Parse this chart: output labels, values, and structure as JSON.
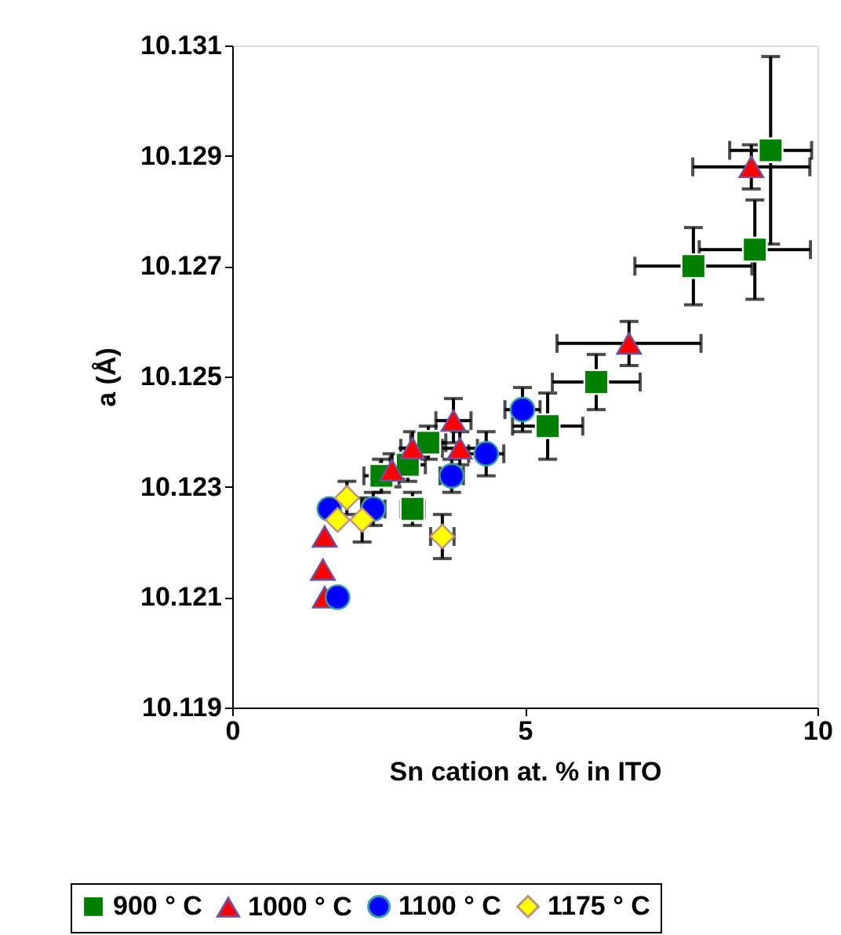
{
  "chart_data": {
    "type": "scatter",
    "xlabel": "Sn cation at. % in ITO",
    "ylabel": "a (Å)",
    "xlim": [
      0,
      10
    ],
    "xticks": [
      0,
      5,
      10
    ],
    "ylim": [
      10.119,
      10.131
    ],
    "yticks": [
      10.119,
      10.121,
      10.123,
      10.125,
      10.127,
      10.129,
      10.131
    ],
    "grid": false,
    "legend": "bottom",
    "series": [
      {
        "name": "900 ° C",
        "color": "#008000",
        "marker": "square",
        "x": [
          9.2,
          8.93,
          7.88,
          6.22,
          5.39,
          3.35,
          3.0,
          2.55,
          3.08
        ],
        "values": [
          10.1291,
          10.1273,
          10.127,
          10.1249,
          10.1241,
          10.1238,
          10.1234,
          10.1232,
          10.1226
        ],
        "errors": [
          0.0017,
          0.0009,
          0.0007,
          0.0005,
          0.0006,
          0.0003,
          0.0003,
          0.0003,
          0.0003
        ],
        "xerrors": [
          0.7,
          0.95,
          1.0,
          0.75,
          0.6,
          0.3,
          0.3,
          0.3,
          0.2
        ]
      },
      {
        "name": "1000 ° C",
        "color": "#ff0000",
        "marker": "triangle",
        "x": [
          8.87,
          6.78,
          3.78,
          3.89,
          3.08,
          2.73,
          1.58,
          1.55,
          1.58
        ],
        "values": [
          10.1288,
          10.1256,
          10.1242,
          10.1237,
          10.1237,
          10.1233,
          10.1221,
          10.1215,
          10.121
        ],
        "errors": [
          0.0004,
          0.0004,
          0.0004,
          0.0003,
          0.0003,
          0.0003,
          null,
          null,
          null
        ],
        "xerrors": [
          1.0,
          1.23,
          0.3,
          0.3,
          0.2,
          0.2,
          null,
          null,
          null
        ]
      },
      {
        "name": "1100 ° C",
        "color": "#0000ff",
        "marker": "circle",
        "x": [
          4.96,
          4.34,
          3.75,
          2.41,
          1.66,
          1.8
        ],
        "values": [
          10.1244,
          10.1236,
          10.1232,
          10.1226,
          10.1226,
          10.121
        ],
        "errors": [
          0.0004,
          0.0004,
          0.0003,
          0.0003,
          null,
          null
        ],
        "xerrors": [
          0.3,
          0.3,
          0.2,
          0.2,
          null,
          null
        ]
      },
      {
        "name": "1175 ° C",
        "color": "#ffff00",
        "marker": "diamond",
        "x": [
          1.96,
          1.8,
          2.22,
          3.59
        ],
        "values": [
          10.1228,
          10.1224,
          10.1224,
          10.1221
        ],
        "errors": [
          0.0003,
          null,
          0.0004,
          0.0004
        ],
        "xerrors": [
          null,
          null,
          null,
          0.2
        ]
      }
    ]
  }
}
